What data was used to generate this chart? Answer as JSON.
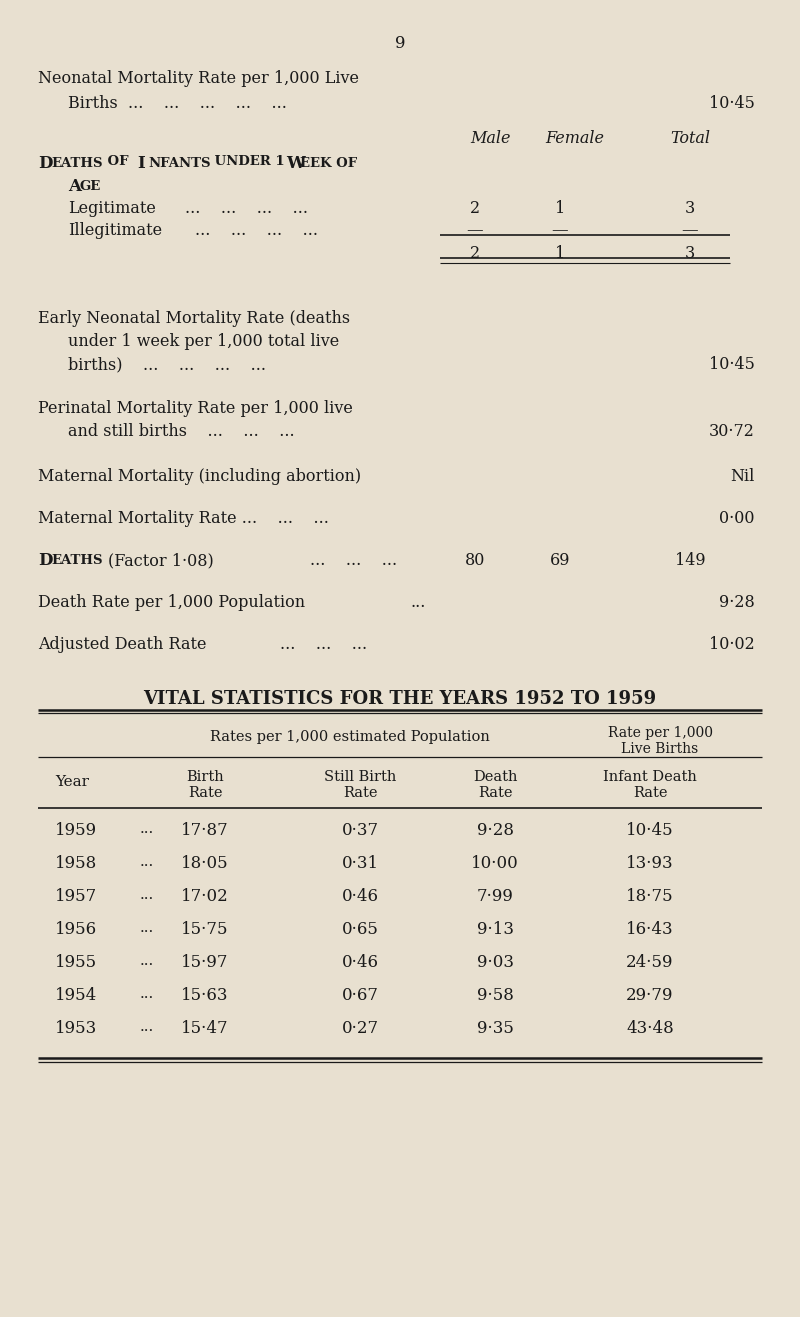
{
  "bg_color": "#e8e0d0",
  "text_color": "#1a1a1a",
  "page_number": "9",
  "neonatal_l1": "Neonatal Mortality Rate per 1,000 Live",
  "neonatal_l2": "Births  ...    ...    ...    ...    ...",
  "neonatal_val": "10·45",
  "col_male": "Male",
  "col_female": "Female",
  "col_total": "Total",
  "deaths_title1": "Deaths of Infants under 1 Week of",
  "deaths_title2": "Age",
  "legit_label": "Legitimate",
  "legit_dots": "...    ...    ...    ...",
  "legit_m": "2",
  "legit_f": "1",
  "legit_t": "3",
  "illeg_label": "Illegitimate",
  "illeg_dots": "...    ...    ...    ...",
  "illeg_m": "—",
  "illeg_f": "—",
  "illeg_t": "—",
  "total_m": "2",
  "total_f": "1",
  "total_t": "3",
  "early_l1": "Early Neonatal Mortality Rate (deaths",
  "early_l2": "under 1 week per 1,000 total live",
  "early_l3": "births)    ...    ...    ...    ...",
  "early_val": "10·45",
  "perinatal_l1": "Perinatal Mortality Rate per 1,000 live",
  "perinatal_l2": "and still births    ...    ...    ...",
  "perinatal_val": "30·72",
  "maternal1_l1": "Maternal Mortality (including abortion)",
  "maternal1_val": "Nil",
  "maternal2_l1": "Maternal Mortality Rate ...    ...    ...",
  "maternal2_val": "0·00",
  "deaths2_label": "Deaths",
  "deaths2_factor": "(Factor 1·08)",
  "deaths2_dots": "...    ...    ...",
  "deaths2_m": "80",
  "deaths2_f": "69",
  "deaths2_val": "149",
  "deathrate_l1": "Death Rate per 1,000 Population",
  "deathrate_dots": "...",
  "deathrate_val": "9·28",
  "adjrate_l1": "Adjusted Death Rate",
  "adjrate_dots": "...    ...    ...",
  "adjrate_val": "10·02",
  "table_title": "VITAL STATISTICS FOR THE YEARS 1952 TO 1959",
  "table_group1": "Rates per 1,000 estimated Population",
  "table_group2a": "Rate per 1,000",
  "table_group2b": "Live Births",
  "table_h_year": "Year",
  "table_h_birth": "Birth\nRate",
  "table_h_still": "Still Birth\nRate",
  "table_h_death": "Death\nRate",
  "table_h_infant": "Infant Death\nRate",
  "table_data": [
    [
      "1959",
      "...",
      "17·87",
      "0·37",
      "9·28",
      "10·45"
    ],
    [
      "1958",
      "...",
      "18·05",
      "0·31",
      "10·00",
      "13·93"
    ],
    [
      "1957",
      "...",
      "17·02",
      "0·46",
      "7·99",
      "18·75"
    ],
    [
      "1956",
      "...",
      "15·75",
      "0·65",
      "9·13",
      "16·43"
    ],
    [
      "1955",
      "...",
      "15·97",
      "0·46",
      "9·03",
      "24·59"
    ],
    [
      "1954",
      "...",
      "15·63",
      "0·67",
      "9·58",
      "29·79"
    ],
    [
      "1953",
      "...",
      "15·47",
      "0·27",
      "9·35",
      "43·48"
    ]
  ]
}
